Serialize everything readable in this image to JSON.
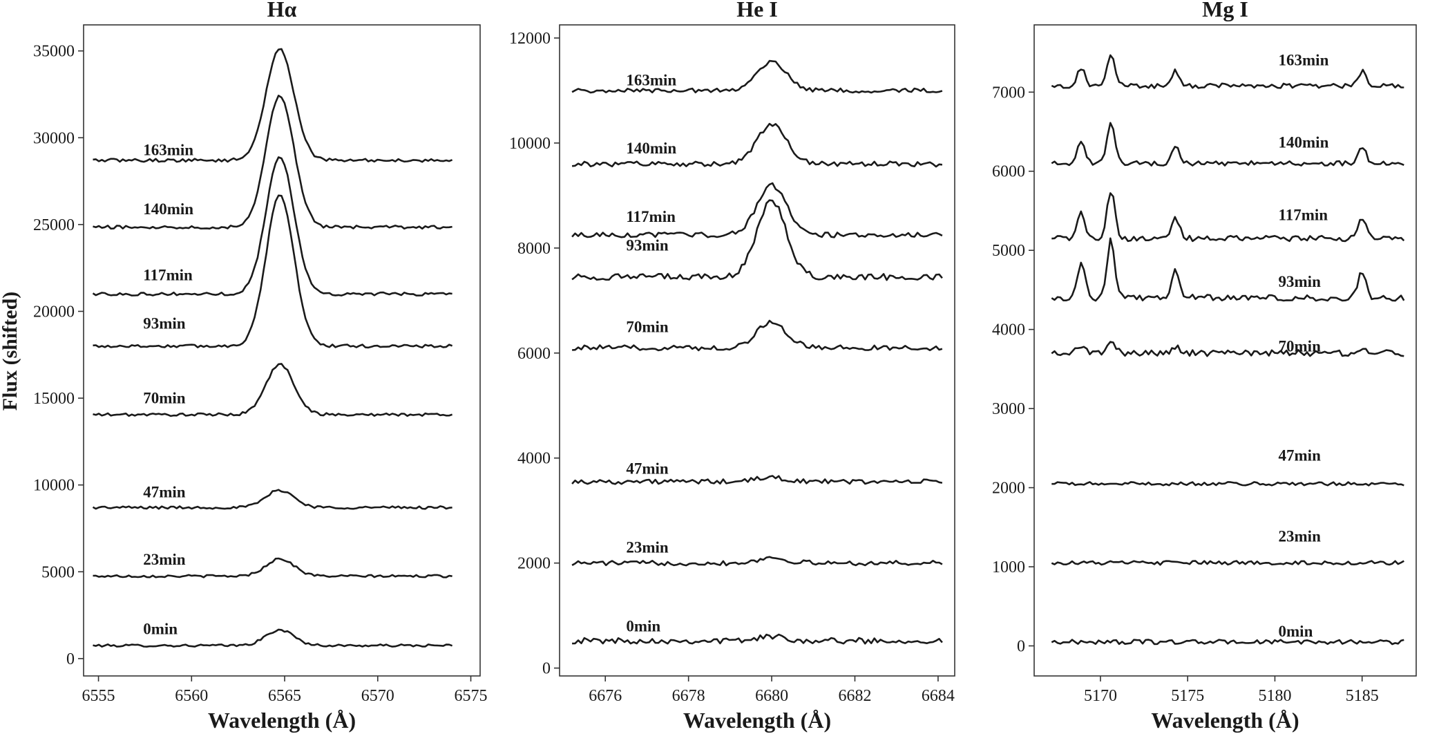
{
  "figure": {
    "ylabel": "Flux (shifted)"
  },
  "chart_data": [
    {
      "type": "line",
      "title": "Hα",
      "xlabel": "Wavelength (Å)",
      "xlim": [
        6554.2,
        6575.5
      ],
      "ylim": [
        -1000,
        36500
      ],
      "xticks": [
        6555,
        6560,
        6565,
        6570,
        6575
      ],
      "yticks": [
        0,
        5000,
        10000,
        15000,
        20000,
        25000,
        30000,
        35000
      ],
      "x_range": [
        6554.7,
        6574.0
      ],
      "label_x": 6557.4,
      "profile": {
        "type": "gauss",
        "center": 6564.75,
        "width": 0.75
      },
      "series": [
        {
          "name": "0min",
          "baseline": 750,
          "peak": 900,
          "noise": 70,
          "label_y": 1400
        },
        {
          "name": "23min",
          "baseline": 4750,
          "peak": 1000,
          "noise": 70,
          "label_y": 5400
        },
        {
          "name": "47min",
          "baseline": 8700,
          "peak": 1000,
          "noise": 80,
          "label_y": 9300
        },
        {
          "name": "70min",
          "baseline": 14050,
          "peak": 2900,
          "noise": 80,
          "label_y": 14700
        },
        {
          "name": "93min",
          "baseline": 18000,
          "peak": 8700,
          "noise": 90,
          "label_y": 19000
        },
        {
          "name": "117min",
          "baseline": 21000,
          "peak": 7900,
          "noise": 90,
          "label_y": 21800
        },
        {
          "name": "140min",
          "baseline": 24850,
          "peak": 7600,
          "noise": 90,
          "label_y": 25600
        },
        {
          "name": "163min",
          "baseline": 28700,
          "peak": 6400,
          "noise": 90,
          "label_y": 29000
        }
      ]
    },
    {
      "type": "line",
      "title": "He I",
      "xlabel": "Wavelength (Å)",
      "xlim": [
        6674.9,
        6684.4
      ],
      "ylim": [
        -150,
        12250
      ],
      "xticks": [
        6676,
        6678,
        6680,
        6682,
        6684
      ],
      "yticks": [
        0,
        2000,
        4000,
        6000,
        8000,
        10000,
        12000
      ],
      "x_range": [
        6675.2,
        6684.1
      ],
      "label_x": 6676.5,
      "profile": {
        "type": "gauss",
        "center": 6680.0,
        "width": 0.35
      },
      "series": [
        {
          "name": "0min",
          "baseline": 520,
          "peak": 80,
          "noise": 55,
          "label_y": 700
        },
        {
          "name": "23min",
          "baseline": 2000,
          "peak": 100,
          "noise": 45,
          "label_y": 2200
        },
        {
          "name": "47min",
          "baseline": 3550,
          "peak": 80,
          "noise": 45,
          "label_y": 3700
        },
        {
          "name": "70min",
          "baseline": 6100,
          "peak": 500,
          "noise": 50,
          "label_y": 6400
        },
        {
          "name": "93min",
          "baseline": 7450,
          "peak": 1450,
          "noise": 60,
          "label_y": 7950
        },
        {
          "name": "117min",
          "baseline": 8250,
          "peak": 950,
          "noise": 45,
          "label_y": 8500
        },
        {
          "name": "140min",
          "baseline": 9600,
          "peak": 750,
          "noise": 50,
          "label_y": 9800
        },
        {
          "name": "163min",
          "baseline": 11000,
          "peak": 550,
          "noise": 40,
          "label_y": 11100
        }
      ]
    },
    {
      "type": "line",
      "title": "Mg I",
      "xlabel": "Wavelength (Å)",
      "xlim": [
        5166.2,
        5188.1
      ],
      "ylim": [
        -380,
        7850
      ],
      "xticks": [
        5170,
        5175,
        5180,
        5185
      ],
      "yticks": [
        0,
        1000,
        2000,
        3000,
        4000,
        5000,
        6000,
        7000
      ],
      "x_range": [
        5167.2,
        5187.4
      ],
      "label_x": 5180.2,
      "profile": {
        "type": "lines",
        "width": 0.22,
        "centers": [
          5168.9,
          5170.6,
          5174.3,
          5185.0
        ],
        "weights": [
          0.55,
          1.0,
          0.45,
          0.45
        ]
      },
      "series": [
        {
          "name": "0min",
          "baseline": 50,
          "peak": 0,
          "noise": 28,
          "label_y": 120
        },
        {
          "name": "23min",
          "baseline": 1050,
          "peak": 0,
          "noise": 25,
          "label_y": 1320
        },
        {
          "name": "47min",
          "baseline": 2050,
          "peak": 0,
          "noise": 22,
          "label_y": 2340
        },
        {
          "name": "70min",
          "baseline": 3700,
          "peak": 180,
          "noise": 40,
          "label_y": 3720
        },
        {
          "name": "93min",
          "baseline": 4400,
          "peak": 750,
          "noise": 40,
          "label_y": 4540
        },
        {
          "name": "117min",
          "baseline": 5150,
          "peak": 600,
          "noise": 35,
          "label_y": 5380
        },
        {
          "name": "140min",
          "baseline": 6100,
          "peak": 500,
          "noise": 30,
          "label_y": 6300
        },
        {
          "name": "163min",
          "baseline": 7080,
          "peak": 400,
          "noise": 30,
          "label_y": 7340
        }
      ]
    }
  ]
}
